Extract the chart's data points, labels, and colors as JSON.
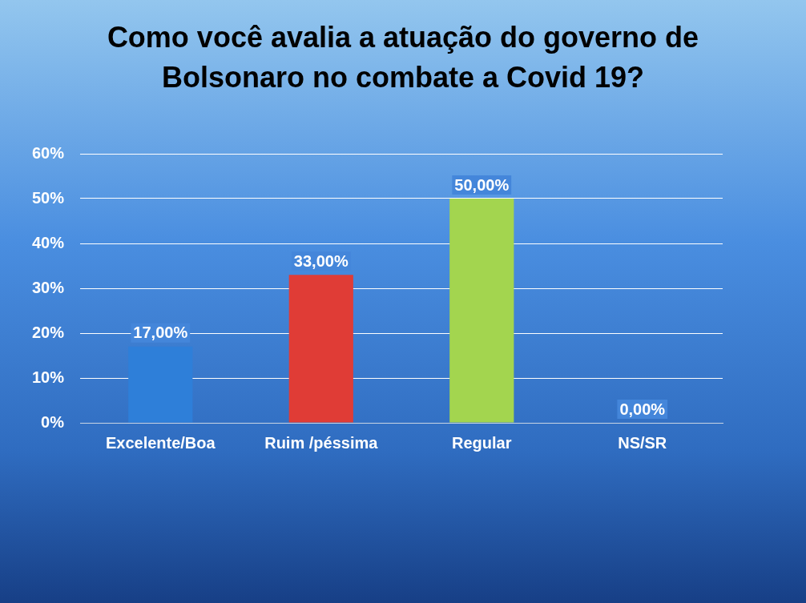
{
  "chart_data": {
    "type": "bar",
    "title": "Como você avalia a atuação do governo de Bolsonaro no combate a Covid 19?",
    "categories": [
      "Excelente/Boa",
      "Ruim /péssima",
      "Regular",
      "NS/SR"
    ],
    "values": [
      17,
      33,
      50,
      0
    ],
    "colors": [
      "#2e7fd9",
      "#e03c36",
      "#a3d54f",
      "#7aa8e0"
    ],
    "value_labels": [
      "17,00%",
      "33,00%",
      "50,00%",
      "0,00%"
    ],
    "ylim": [
      0,
      60
    ],
    "yticks": [
      {
        "value": 0,
        "label": "0%"
      },
      {
        "value": 10,
        "label": "10%"
      },
      {
        "value": 20,
        "label": "20%"
      },
      {
        "value": 30,
        "label": "30%"
      },
      {
        "value": 40,
        "label": "40%"
      },
      {
        "value": 50,
        "label": "50%"
      },
      {
        "value": 60,
        "label": "60%"
      }
    ],
    "grid": "y"
  }
}
